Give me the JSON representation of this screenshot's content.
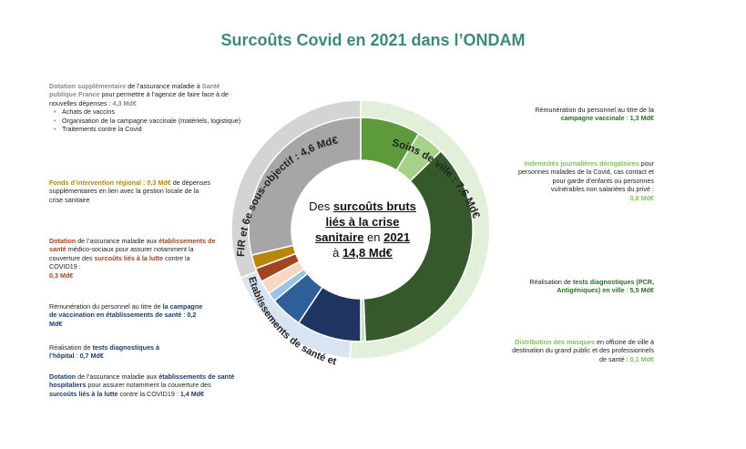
{
  "title": "Surcoûts Covid en 2021 dans l’ONDAM",
  "center": {
    "l1a": "Des ",
    "l1b": "surcoûts bruts",
    "l2": "liés à la crise",
    "l3a": "sanitaire",
    "l3b": " en ",
    "l3c": "2021",
    "l4a": "à ",
    "l4b": "14,8 Md€"
  },
  "chart_data": {
    "type": "pie",
    "total": 14.8,
    "outer_ring": [
      {
        "label": "FIR et 6e sous-objectif : 4,6 Md€",
        "value": 4.6,
        "color": "#d4d4d4"
      },
      {
        "label": "Soins de ville : 7,6 Md€",
        "value": 7.6,
        "color": "#e2f0da"
      },
      {
        "label": "Etablissements de santé et médico-sociaux: 2,6 Md€",
        "value": 2.6,
        "color": "#d9e4f2"
      }
    ],
    "inner_ring": [
      {
        "value": 1.3,
        "color": "#5c9a3c"
      },
      {
        "value": 0.6,
        "color": "#a5d18a"
      },
      {
        "value": 5.5,
        "color": "#35592a"
      },
      {
        "value": 0.1,
        "color": "#c8e0b8"
      },
      {
        "value": 1.4,
        "color": "#1e3562"
      },
      {
        "value": 0.7,
        "color": "#2f5f99"
      },
      {
        "value": 0.2,
        "color": "#9cc3e6"
      },
      {
        "value": 0.3,
        "color": "#f8d8c4"
      },
      {
        "value": 0.3,
        "color": "#a0451f"
      },
      {
        "value": 0.3,
        "color": "#b8860b"
      },
      {
        "value": 4.3,
        "color": "#a6a6a6"
      }
    ]
  },
  "annotations": {
    "a1": {
      "b1": "Dotation supplémentaire",
      "t1": " de l’assurance maladie à ",
      "b2": "Santé publique France",
      "t2": " pour permettre à l’agence de faire face à de nouvelles dépenses : ",
      "v": "4,3 Md€",
      "items": [
        "Achats de vaccins",
        "Organisation de la campagne vaccinale (matériels, logistique)",
        "Traitements contre la Covid"
      ]
    },
    "a2": {
      "b1": "Fonds d’intervention régional",
      "v": " : 0,3 Md€",
      "t1": " de dépenses supplémentaires en lien avec la gestion locale de la crise sanitaire"
    },
    "a3": {
      "b1": "Dotation",
      "t1": " de l’assurance maladie aux ",
      "b2": "établissements de santé",
      "t2": " médico-sociaux pour assurer notamment la couverture des ",
      "b3": "surcoûts liés à la lutte",
      "t3": " contre la COVID19 :",
      "v": "0,3 Md€"
    },
    "a4": {
      "t1": "Rémunération du personnel au titre de ",
      "b1": "la campagne de vaccination en établissements de santé",
      "t2": " : ",
      "v": "0,2 Md€"
    },
    "a5": {
      "t1": "Réalisation de ",
      "b1": "tests diagnostiques à l’hôpital",
      "t2": " : ",
      "v": "0,7 Md€"
    },
    "a6": {
      "b1": "Dotation",
      "t1": " de l’assurance maladie aux ",
      "b2": "établissements de santé hospitaliers",
      "t2": " pour assurer notamment la couverture des ",
      "b3": "surcoûts liés à la lutte",
      "t3": " contre la COVID19 : ",
      "v": "1,4 Md€"
    },
    "a7": {
      "t1": "Rémunération du personnel au titre de ",
      "b1": "la campagne vaccinale",
      "t2": " : ",
      "v": "1,3 Md€"
    },
    "a8": {
      "b1": "Indemnités journalières dérogatoires",
      "t1": " pour personnes malades de la Covid, cas contact et pour garde d’enfants ou personnes vulnérables non salariées du privé :",
      "v": "0,6 Md€"
    },
    "a9": {
      "t1": "Réalisation de ",
      "b1": "tests diagnostiques (PCR, Antigéniques) en ville",
      "t2": " : ",
      "v": "5,5 Md€"
    },
    "a10": {
      "b1": "Distribution des masques",
      "t1": " en officine de ville à destination du grand public et des professionnels de santé : ",
      "v": "0,1 Md€"
    }
  }
}
